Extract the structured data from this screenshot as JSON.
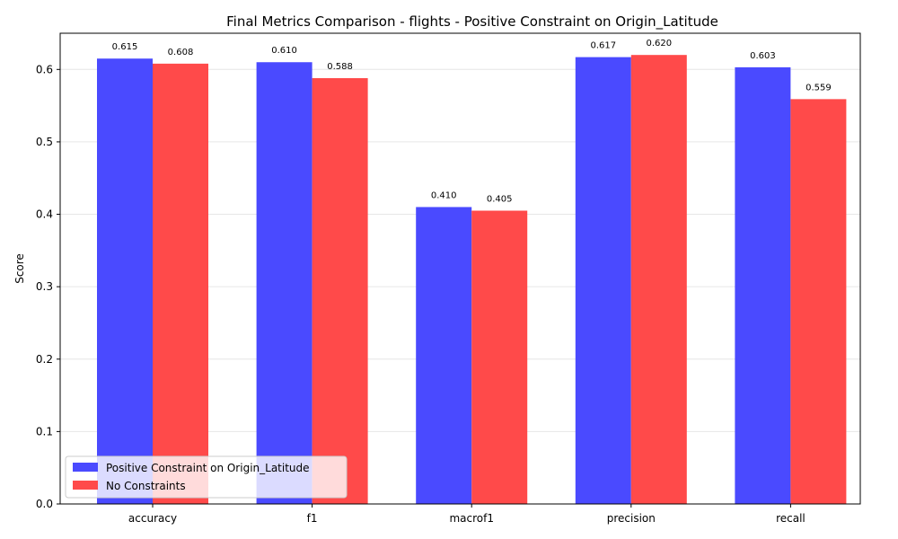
{
  "chart_data": {
    "type": "bar",
    "title": "Final Metrics Comparison - flights - Positive Constraint on Origin_Latitude",
    "xlabel": "",
    "ylabel": "Score",
    "categories": [
      "accuracy",
      "f1",
      "macrof1",
      "precision",
      "recall"
    ],
    "series": [
      {
        "name": "Positive Constraint on Origin_Latitude",
        "color": "#4a4aff",
        "values": [
          0.615,
          0.61,
          0.41,
          0.617,
          0.603
        ],
        "labels": [
          "0.615",
          "0.610",
          "0.410",
          "0.617",
          "0.603"
        ]
      },
      {
        "name": "No Constraints",
        "color": "#ff4a4a",
        "values": [
          0.608,
          0.588,
          0.405,
          0.62,
          0.559
        ],
        "labels": [
          "0.608",
          "0.588",
          "0.405",
          "0.620",
          "0.559"
        ]
      }
    ],
    "ylim": [
      0,
      0.65
    ],
    "yticks": [
      0.0,
      0.1,
      0.2,
      0.3,
      0.4,
      0.5,
      0.6
    ],
    "ytick_labels": [
      "0.0",
      "0.1",
      "0.2",
      "0.3",
      "0.4",
      "0.5",
      "0.6"
    ],
    "grid": "y",
    "legend_position": "lower-left"
  }
}
